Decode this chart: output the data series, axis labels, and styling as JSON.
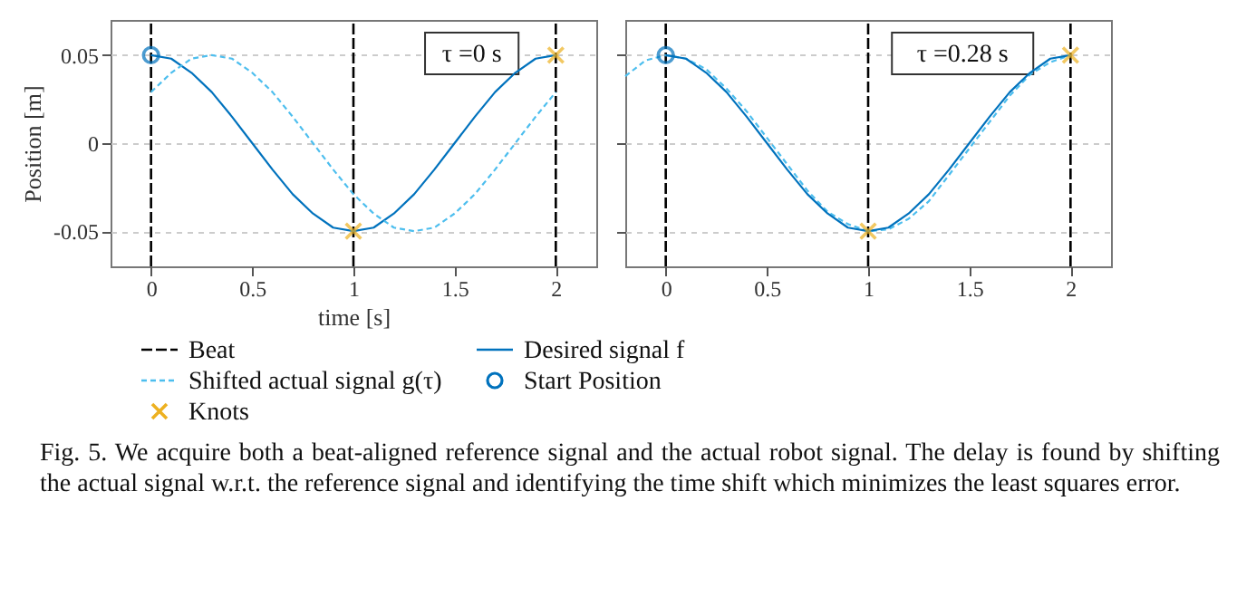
{
  "chart_data": [
    {
      "type": "line",
      "xlabel": "time [s]",
      "ylabel": "Position [m]",
      "xlim": [
        -0.2,
        2.2
      ],
      "ylim": [
        -0.07,
        0.07
      ],
      "xticks": [
        0,
        0.5,
        1,
        1.5,
        2
      ],
      "yticks": [
        -0.05,
        0,
        0.05
      ],
      "grid": true,
      "legend": "bottom",
      "annotations": [
        "τ =0 s",
        "Fig. 5.   We acquire both a beat-aligned reference signal and the actual robot signal. The delay is found by shifting the actual signal w.r.t. the reference signal and identifying the time shift which minimizes the least squares error."
      ],
      "ref_lines": [
        {
          "axis": "x",
          "value": 0,
          "label": "Beat",
          "color": "#000000",
          "line_style": "dashed"
        },
        {
          "axis": "x",
          "value": 1,
          "color": "#000000",
          "line_style": "dashed"
        },
        {
          "axis": "x",
          "value": 2,
          "color": "#000000",
          "line_style": "dashed"
        }
      ],
      "series": [
        {
          "name": "Desired signal f",
          "type": "line",
          "color": "#0072bd",
          "line_style": "solid",
          "x": [
            0,
            0.1,
            0.2,
            0.3,
            0.4,
            0.5,
            0.6,
            0.7,
            0.8,
            0.9,
            1,
            1.1,
            1.2,
            1.3,
            1.4,
            1.5,
            1.6,
            1.7,
            1.8,
            1.9,
            2
          ],
          "values": [
            0.05,
            0.048,
            0.04,
            0.029,
            0.015,
            0,
            -0.015,
            -0.029,
            -0.04,
            -0.048,
            -0.05,
            -0.048,
            -0.04,
            -0.029,
            -0.015,
            0,
            0.015,
            0.029,
            0.04,
            0.048,
            0.05
          ]
        },
        {
          "name": "Shifted actual signal g(τ)",
          "type": "line",
          "color": "#4dbeee",
          "line_style": "dashed",
          "x": [
            0,
            0.1,
            0.2,
            0.3,
            0.4,
            0.5,
            0.6,
            0.7,
            0.8,
            0.9,
            1,
            1.1,
            1.2,
            1.3,
            1.4,
            1.5,
            1.6,
            1.7,
            1.8,
            1.9,
            2
          ],
          "values": [
            0.029,
            0.04,
            0.048,
            0.05,
            0.048,
            0.04,
            0.029,
            0.015,
            0,
            -0.015,
            -0.029,
            -0.04,
            -0.048,
            -0.05,
            -0.048,
            -0.04,
            -0.029,
            -0.015,
            0,
            0.015,
            0.029
          ]
        },
        {
          "name": "Start Position",
          "type": "scatter",
          "marker": "circle",
          "color": "#0072bd",
          "x": [
            0
          ],
          "values": [
            0.05
          ]
        },
        {
          "name": "Knots",
          "type": "scatter",
          "marker": "cross",
          "color": "#edb120",
          "x": [
            1,
            2
          ],
          "values": [
            -0.05,
            0.05
          ]
        }
      ]
    },
    {
      "type": "line",
      "xlim": [
        -0.2,
        2.2
      ],
      "ylim": [
        -0.07,
        0.07
      ],
      "xticks": [
        0,
        0.5,
        1,
        1.5,
        2
      ],
      "yticks": [
        -0.05,
        0,
        0.05
      ],
      "grid": true,
      "tick_labels": "x",
      "annotations": [
        "τ =0.28  s"
      ],
      "ref_lines": [
        {
          "axis": "x",
          "value": 0,
          "color": "#000000",
          "line_style": "dashed"
        },
        {
          "axis": "x",
          "value": 1,
          "color": "#000000",
          "line_style": "dashed"
        },
        {
          "axis": "x",
          "value": 2,
          "color": "#000000",
          "line_style": "dashed"
        }
      ],
      "series": [
        {
          "type": "line",
          "color": "#4dbeee",
          "line_style": "dashed",
          "x": [
            -0.2,
            -0.1,
            0,
            0.1,
            0.2,
            0.3,
            0.4,
            0.5,
            0.6,
            0.7,
            0.8,
            0.9,
            1,
            1.1,
            1.2,
            1.3,
            1.4,
            1.5,
            1.6,
            1.7,
            1.8,
            1.9,
            2
          ],
          "values": [
            0.038,
            0.047,
            0.05,
            0.048,
            0.042,
            0.031,
            0.018,
            0.003,
            -0.012,
            -0.027,
            -0.039,
            -0.046,
            -0.05,
            -0.049,
            -0.043,
            -0.033,
            -0.018,
            -0.003,
            0.012,
            0.027,
            0.039,
            0.046,
            0.05
          ]
        },
        {
          "type": "line",
          "color": "#0072bd",
          "line_style": "solid",
          "x": [
            0,
            0.1,
            0.2,
            0.3,
            0.4,
            0.5,
            0.6,
            0.7,
            0.8,
            0.9,
            1,
            1.1,
            1.2,
            1.3,
            1.4,
            1.5,
            1.6,
            1.7,
            1.8,
            1.9,
            2
          ],
          "values": [
            0.05,
            0.048,
            0.04,
            0.029,
            0.015,
            0,
            -0.015,
            -0.029,
            -0.04,
            -0.048,
            -0.05,
            -0.048,
            -0.04,
            -0.029,
            -0.015,
            0,
            0.015,
            0.029,
            0.04,
            0.048,
            0.05
          ]
        },
        {
          "type": "scatter",
          "marker": "circle",
          "color": "#0072bd",
          "x": [
            0
          ],
          "values": [
            0.05
          ]
        },
        {
          "type": "scatter",
          "marker": "cross",
          "color": "#edb120",
          "x": [
            1,
            2
          ],
          "values": [
            -0.05,
            0.05
          ]
        }
      ]
    }
  ]
}
